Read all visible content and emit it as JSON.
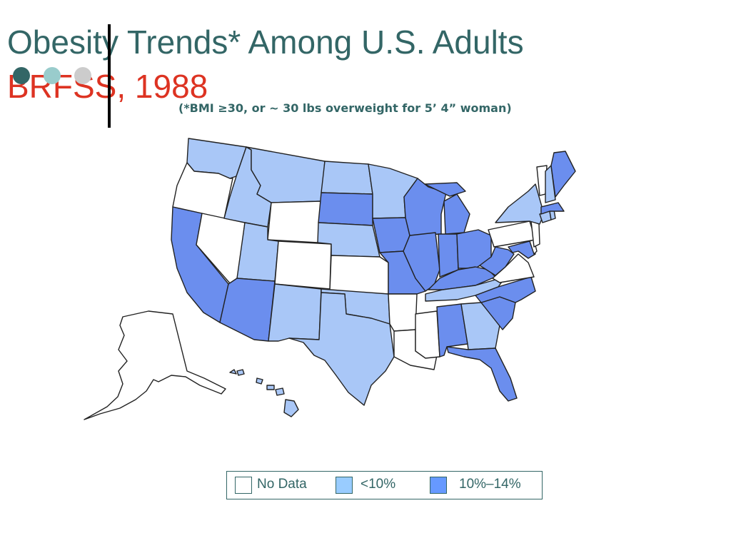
{
  "slide": {
    "title": "Obesity Trends* Among U.S. Adults",
    "subtitle": "BRFSS, 1988",
    "footnote": "(*BMI ≥30, or ~ 30 lbs overweight for 5’ 4” woman)"
  },
  "colors": {
    "title": "#336666",
    "subtitle": "#dd3322",
    "no_data": "#ffffff",
    "lt10": "#a9c7f7",
    "10to14": "#6b8eee",
    "legend_lt10": "#99ccff",
    "legend_10to14": "#6699ff"
  },
  "decor_dots": [
    "#336666",
    "#99cccc",
    "#cccccc"
  ],
  "legend": [
    {
      "label": "No Data",
      "color": "#ffffff"
    },
    {
      "label": "<10%",
      "color": "#99ccff"
    },
    {
      "label": "10%–14%",
      "color": "#6699ff"
    }
  ],
  "map_data": {
    "categories": [
      "No Data",
      "<10%",
      "10%–14%"
    ],
    "states": {
      "WA": "<10%",
      "OR": "No Data",
      "CA": "10%–14%",
      "NV": "No Data",
      "ID": "<10%",
      "MT": "<10%",
      "WY": "No Data",
      "UT": "<10%",
      "AZ": "10%–14%",
      "CO": "No Data",
      "NM": "<10%",
      "ND": "<10%",
      "SD": "10%–14%",
      "NE": "<10%",
      "KS": "No Data",
      "OK": "<10%",
      "TX": "<10%",
      "MN": "<10%",
      "IA": "10%–14%",
      "MO": "10%–14%",
      "AR": "No Data",
      "LA": "No Data",
      "WI": "10%–14%",
      "IL": "10%–14%",
      "MI": "10%–14%",
      "IN": "10%–14%",
      "OH": "10%–14%",
      "KY": "10%–14%",
      "TN": "<10%",
      "MS": "No Data",
      "AL": "10%–14%",
      "GA": "<10%",
      "FL": "10%–14%",
      "SC": "10%–14%",
      "NC": "10%–14%",
      "VA": "No Data",
      "WV": "10%–14%",
      "MD": "10%–14%",
      "DE": "No Data",
      "NJ": "No Data",
      "PA": "No Data",
      "NY": "<10%",
      "CT": "<10%",
      "RI": "<10%",
      "MA": "10%–14%",
      "VT": "No Data",
      "NH": "<10%",
      "ME": "10%–14%",
      "AK": "No Data",
      "HI": "<10%"
    }
  }
}
